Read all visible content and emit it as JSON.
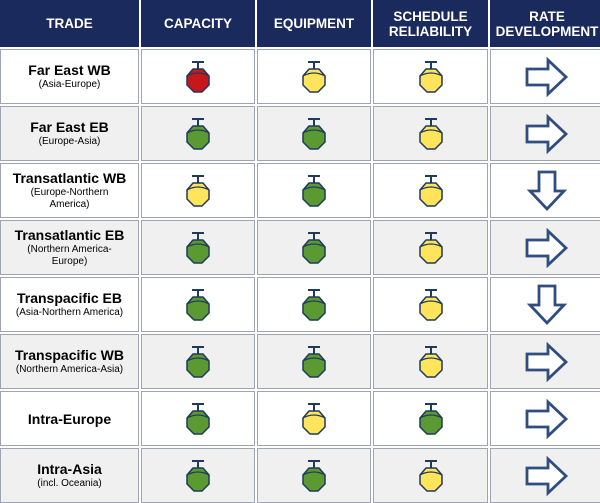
{
  "headers": [
    "TRADE",
    "CAPACITY",
    "EQUIPMENT",
    "SCHEDULE\nRELIABILITY",
    "RATE\nDEVELOPMENT"
  ],
  "colors": {
    "header_bg": "#1b2a5c",
    "red": "#c8161d",
    "green": "#5b9a32",
    "yellow": "#ffe45c",
    "outline": "#1f3a5a",
    "arrow_stroke": "#2f4d7f"
  },
  "rows": [
    {
      "trade": "Far East WB",
      "sub": "(Asia-Europe)",
      "capacity": "red",
      "equipment": "yellow",
      "schedule": "yellow",
      "rate": "right"
    },
    {
      "trade": "Far East EB",
      "sub": "(Europe-Asia)",
      "capacity": "green",
      "equipment": "green",
      "schedule": "yellow",
      "rate": "right"
    },
    {
      "trade": "Transatlantic WB",
      "sub": "(Europe-Northern\nAmerica)",
      "capacity": "yellow",
      "equipment": "green",
      "schedule": "yellow",
      "rate": "down"
    },
    {
      "trade": "Transatlantic EB",
      "sub": "(Northern America-\nEurope)",
      "capacity": "green",
      "equipment": "green",
      "schedule": "yellow",
      "rate": "right"
    },
    {
      "trade": "Transpacific EB",
      "sub": "(Asia-Northern America)",
      "capacity": "green",
      "equipment": "green",
      "schedule": "yellow",
      "rate": "down"
    },
    {
      "trade": "Transpacific WB",
      "sub": "(Northern America-Asia)",
      "capacity": "green",
      "equipment": "green",
      "schedule": "yellow",
      "rate": "right"
    },
    {
      "trade": "Intra-Europe",
      "sub": "",
      "capacity": "green",
      "equipment": "yellow",
      "schedule": "green",
      "rate": "right"
    },
    {
      "trade": "Intra-Asia",
      "sub": "(incl. Oceania)",
      "capacity": "green",
      "equipment": "green",
      "schedule": "yellow",
      "rate": "right"
    }
  ]
}
